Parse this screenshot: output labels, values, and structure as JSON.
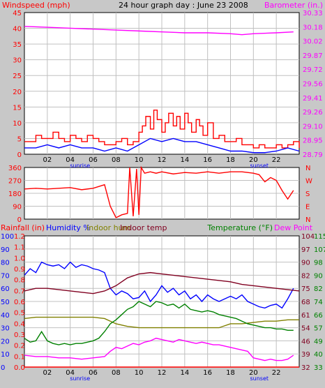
{
  "title": "24 hour graph day : June 23 2008",
  "colors": {
    "background": "#c8c8c8",
    "plot_bg": "#ffffff",
    "grid": "#c0c0c0",
    "wind": "#ff0000",
    "wind_avg": "#0000ff",
    "barometer": "#ff00ff",
    "direction": "#ff0000",
    "rainfall": "#ff0000",
    "humidity": "#0000ff",
    "indoor_hum": "#808000",
    "indoor_temp": "#800020",
    "temperature": "#008000",
    "dew_point": "#ff00ff",
    "tick_black": "#000000"
  },
  "x_axis": {
    "ticks": [
      "02",
      "04",
      "06",
      "08",
      "10",
      "12",
      "14",
      "16",
      "18",
      "20",
      "22"
    ],
    "sunrise_label": "sunrise",
    "sunset_label": "sunset",
    "sunrise_hour": 4.0,
    "sunset_hour": 21.0
  },
  "chart_data": [
    {
      "type": "line",
      "title": "24 hour graph day : June 23 2008",
      "ylabel_left": "Windspeed (mph)",
      "ylabel_right": "Barometer (in.)",
      "y_ticks_left": [
        "0",
        "5",
        "10",
        "15",
        "20",
        "25",
        "30",
        "35",
        "40",
        "45"
      ],
      "y_ticks_right": [
        "28.79",
        "28.95",
        "29.10",
        "29.26",
        "29.41",
        "29.56",
        "29.72",
        "29.87",
        "30.02",
        "30.18",
        "30.33"
      ],
      "ylim_left": [
        0,
        45
      ],
      "ylim_right": [
        28.79,
        30.33
      ],
      "xlim": [
        0,
        24
      ],
      "series": [
        {
          "role": "wind_gust",
          "x": [
            0,
            0.5,
            1,
            1.5,
            2,
            2.5,
            3,
            3.5,
            4,
            4.5,
            5,
            5.5,
            6,
            6.5,
            7,
            7.5,
            8,
            8.5,
            9,
            9.5,
            10,
            10.3,
            10.6,
            11,
            11.3,
            11.6,
            12,
            12.3,
            12.6,
            13,
            13.3,
            13.6,
            14,
            14.3,
            14.6,
            15,
            15.3,
            15.6,
            16,
            16.5,
            17,
            17.5,
            18,
            18.5,
            19,
            19.5,
            20,
            20.5,
            21,
            21.5,
            22,
            22.5,
            23,
            23.5,
            24
          ],
          "values": [
            4,
            4,
            6,
            5,
            5,
            7,
            5,
            4,
            6,
            5,
            4,
            6,
            5,
            4,
            3,
            3,
            4,
            5,
            3,
            4,
            7,
            9,
            12,
            8,
            14,
            11,
            7,
            10,
            13,
            9,
            12,
            8,
            13,
            10,
            7,
            11,
            9,
            6,
            10,
            5,
            6,
            4,
            4,
            5,
            3,
            3,
            2,
            3,
            2,
            2,
            3,
            2,
            3,
            4,
            2
          ]
        },
        {
          "role": "wind_avg",
          "x": [
            0,
            1,
            2,
            3,
            4,
            5,
            6,
            7,
            8,
            9,
            10,
            11,
            12,
            13,
            14,
            15,
            16,
            17,
            18,
            19,
            20,
            21,
            22,
            23,
            24
          ],
          "values": [
            2,
            2,
            3,
            2,
            3,
            2,
            2,
            1,
            2,
            1,
            3,
            5,
            4,
            5,
            4,
            4,
            3,
            2,
            1,
            1,
            0.5,
            0.5,
            1,
            2,
            1
          ]
        },
        {
          "role": "barometer",
          "x": [
            0,
            2,
            4,
            6,
            8,
            10,
            12,
            14,
            16,
            18,
            19,
            20,
            22,
            23.5
          ],
          "values": [
            30.18,
            30.17,
            30.16,
            30.15,
            30.14,
            30.13,
            30.12,
            30.11,
            30.11,
            30.1,
            30.09,
            30.1,
            30.11,
            30.12
          ]
        }
      ]
    },
    {
      "type": "line",
      "ylabel": "Wind direction",
      "y_ticks_left": [
        "0",
        "90",
        "180",
        "270",
        "360"
      ],
      "y_ticks_right": [
        "N",
        "E",
        "S",
        "W",
        "N"
      ],
      "ylim": [
        0,
        360
      ],
      "xlim": [
        0,
        24
      ],
      "series": [
        {
          "role": "direction",
          "x": [
            0,
            1,
            2,
            3,
            4,
            5,
            6,
            7,
            7.5,
            8,
            8.5,
            9,
            9.2,
            9.5,
            9.8,
            10,
            10.2,
            10.5,
            11,
            11.5,
            12,
            13,
            14,
            15,
            16,
            17,
            18,
            19,
            20,
            20.5,
            21,
            21.5,
            22,
            22.5,
            23,
            23.5
          ],
          "values": [
            210,
            215,
            210,
            215,
            220,
            205,
            215,
            240,
            90,
            10,
            30,
            40,
            360,
            20,
            350,
            30,
            360,
            320,
            330,
            320,
            330,
            315,
            325,
            320,
            330,
            320,
            330,
            330,
            320,
            310,
            260,
            290,
            270,
            200,
            140,
            200
          ]
        }
      ]
    },
    {
      "type": "line",
      "ylabel_left": "Rainfall (in)",
      "legend": [
        "Humidity %",
        "Indoor hum",
        "Indoor temp",
        "Temperature (°F)",
        "Dew Point"
      ],
      "y_ticks_rain": [
        "0.0",
        "0.1",
        "0.2",
        "0.3",
        "0.4",
        "0.5",
        "0.6",
        "0.7",
        "0.8",
        "0.9",
        "1.0",
        "1.1",
        "1.2"
      ],
      "y_ticks_humidity": [
        "0",
        "10",
        "20",
        "30",
        "40",
        "50",
        "60",
        "70",
        "80",
        "90",
        "100"
      ],
      "y_ticks_temp_right1": [
        "32",
        "39",
        "46",
        "54",
        "61",
        "68",
        "75",
        "82",
        "90",
        "97",
        "104"
      ],
      "y_ticks_temp_right2": [
        "33",
        "40",
        "49",
        "57",
        "66",
        "74",
        "82",
        "90",
        "98",
        "107",
        "115"
      ],
      "ylim_humidity": [
        0,
        100
      ],
      "xlim": [
        0,
        24
      ],
      "series": [
        {
          "role": "rainfall",
          "x": [
            0,
            24
          ],
          "values": [
            0,
            0
          ]
        },
        {
          "role": "humidity",
          "x": [
            0,
            0.5,
            1,
            1.5,
            2,
            2.5,
            3,
            3.5,
            4,
            4.5,
            5,
            5.5,
            6,
            6.5,
            7,
            7.5,
            8,
            8.5,
            9,
            9.5,
            10,
            10.5,
            11,
            11.5,
            12,
            12.5,
            13,
            13.5,
            14,
            14.5,
            15,
            15.5,
            16,
            16.5,
            17,
            17.5,
            18,
            18.5,
            19,
            19.5,
            20,
            20.5,
            21,
            21.5,
            22,
            22.5,
            23,
            23.5
          ],
          "values": [
            70,
            75,
            72,
            80,
            78,
            77,
            78,
            75,
            80,
            76,
            78,
            77,
            75,
            74,
            72,
            60,
            55,
            58,
            56,
            52,
            53,
            58,
            50,
            55,
            62,
            57,
            60,
            55,
            58,
            52,
            55,
            50,
            55,
            52,
            50,
            52,
            54,
            52,
            55,
            50,
            48,
            46,
            45,
            47,
            48,
            45,
            52,
            60
          ]
        },
        {
          "role": "indoor_hum",
          "x": [
            0,
            1,
            2,
            3,
            4,
            5,
            6,
            7,
            8,
            9,
            10,
            11,
            12,
            13,
            14,
            15,
            16,
            17,
            18,
            19,
            20,
            21,
            22,
            23,
            24
          ],
          "values": [
            37,
            38,
            38,
            38,
            38,
            38,
            38,
            37,
            33,
            31,
            30,
            30,
            30,
            30,
            30,
            30,
            30,
            30,
            33,
            33,
            34,
            35,
            35,
            36,
            36
          ]
        },
        {
          "role": "indoor_temp",
          "x": [
            0,
            1,
            2,
            3,
            4,
            5,
            6,
            7,
            8,
            9,
            10,
            11,
            12,
            13,
            14,
            15,
            16,
            17,
            18,
            19,
            20,
            21,
            22,
            23,
            24
          ],
          "values": [
            58,
            60,
            60,
            59,
            58,
            57,
            56,
            58,
            62,
            68,
            71,
            72,
            71,
            70,
            69,
            68,
            67,
            66,
            65,
            63,
            62,
            61,
            60,
            59,
            58
          ]
        },
        {
          "role": "temperature",
          "x": [
            0,
            0.5,
            1,
            1.5,
            2,
            2.5,
            3,
            3.5,
            4,
            4.5,
            5,
            5.5,
            6,
            6.5,
            7,
            7.5,
            8,
            8.5,
            9,
            9.5,
            10,
            10.5,
            11,
            11.5,
            12,
            12.5,
            13,
            13.5,
            14,
            14.5,
            15,
            15.5,
            16,
            16.5,
            17,
            17.5,
            18,
            18.5,
            19,
            19.5,
            20,
            20.5,
            21,
            21.5,
            22,
            22.5,
            23,
            23.5
          ],
          "values": [
            22,
            19,
            20,
            27,
            20,
            18,
            17,
            18,
            17,
            18,
            18,
            19,
            20,
            22,
            27,
            33,
            36,
            40,
            44,
            46,
            50,
            48,
            46,
            50,
            49,
            47,
            48,
            45,
            48,
            44,
            43,
            42,
            43,
            42,
            40,
            39,
            38,
            37,
            35,
            33,
            32,
            31,
            30,
            30,
            29,
            29,
            28,
            28
          ]
        },
        {
          "role": "dew_point",
          "x": [
            0,
            1,
            2,
            3,
            4,
            5,
            6,
            7,
            7.5,
            8,
            8.5,
            9,
            9.5,
            10,
            10.5,
            11,
            11.5,
            12,
            12.5,
            13,
            13.5,
            14,
            14.5,
            15,
            15.5,
            16,
            16.5,
            17,
            17.5,
            18,
            18.5,
            19,
            19.5,
            20,
            20.5,
            21,
            21.5,
            22,
            22.5,
            23,
            23.5
          ],
          "values": [
            9,
            8,
            8,
            7,
            7,
            6,
            7,
            8,
            12,
            15,
            14,
            16,
            18,
            17,
            19,
            20,
            22,
            21,
            20,
            19,
            21,
            20,
            19,
            18,
            19,
            18,
            17,
            17,
            16,
            15,
            14,
            13,
            12,
            7,
            6,
            5,
            6,
            5,
            5,
            6,
            9
          ]
        }
      ]
    }
  ]
}
